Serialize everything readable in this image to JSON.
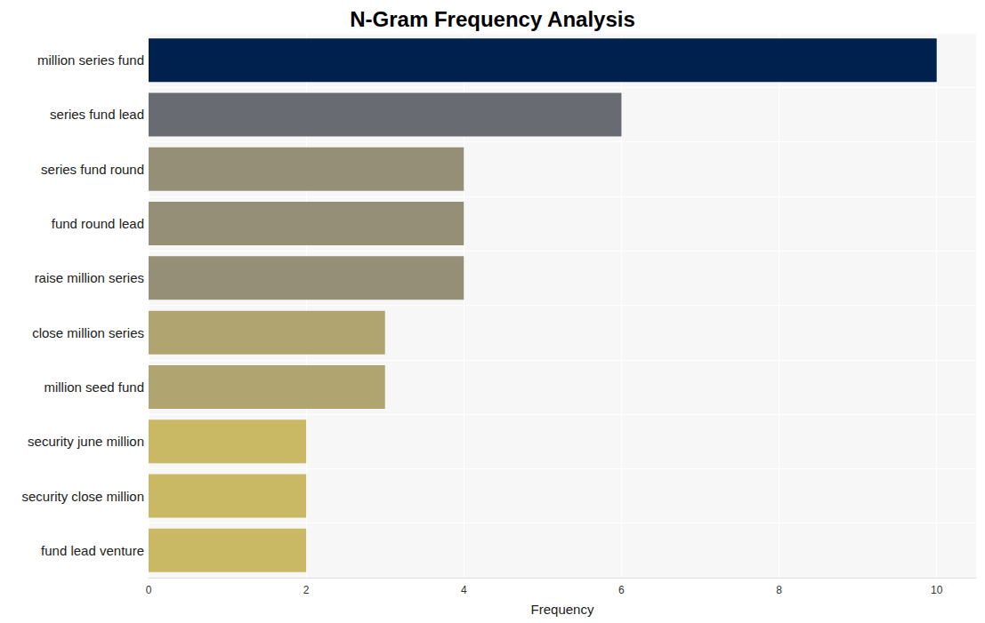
{
  "chart_data": {
    "type": "bar",
    "title": "N-Gram Frequency Analysis",
    "x_label": "Frequency",
    "orientation": "horizontal",
    "categories": [
      "million series fund",
      "series fund lead",
      "series fund round",
      "fund round lead",
      "raise million series",
      "close million series",
      "million seed fund",
      "security june million",
      "security close million",
      "fund lead venture"
    ],
    "values": [
      10,
      6,
      4,
      4,
      4,
      3,
      3,
      2,
      2,
      2
    ],
    "colors": [
      "#00214d",
      "#696b73",
      "#968f77",
      "#968f77",
      "#968f77",
      "#b0a470",
      "#b0a470",
      "#c9b965",
      "#c9b965",
      "#c9b965"
    ],
    "xlim": [
      0,
      10.5
    ],
    "xticks": [
      0,
      2,
      4,
      6,
      8,
      10
    ],
    "grid": true
  }
}
